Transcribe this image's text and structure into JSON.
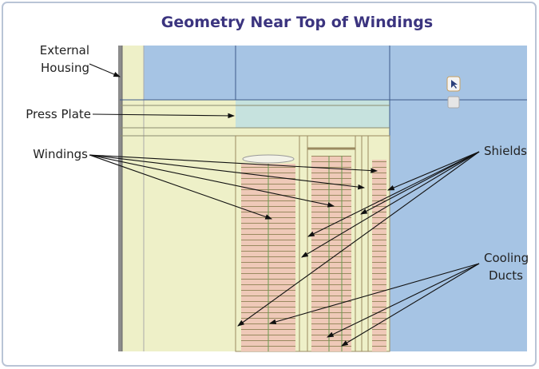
{
  "title": "Geometry Near Top of Windings",
  "labels": {
    "external_housing": [
      "External",
      "Housing"
    ],
    "press_plate": "Press Plate",
    "windings": "Windings",
    "shields": "Shields",
    "cooling_ducts": [
      "Cooling",
      "Ducts"
    ]
  }
}
